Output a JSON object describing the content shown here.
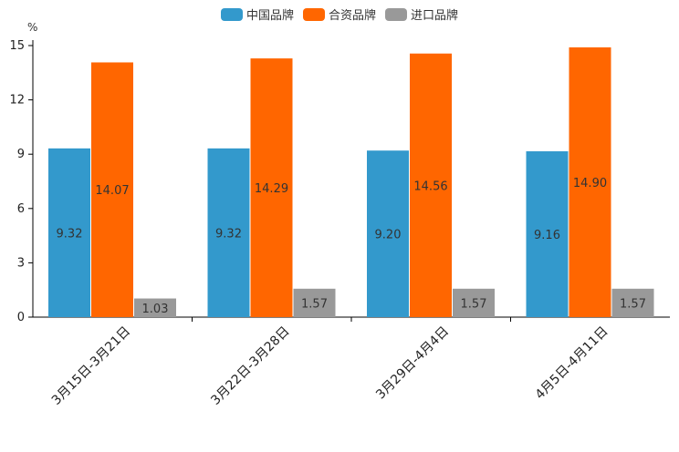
{
  "chart_data": {
    "type": "bar",
    "title": "",
    "xlabel": "",
    "ylabel": "%",
    "ylim": [
      0,
      15
    ],
    "yticks": [
      0,
      3,
      6,
      9,
      12,
      15
    ],
    "categories": [
      "3月15日-3月21日",
      "3月22日-3月28日",
      "3月29日-4月4日",
      "4月5日-4月11日"
    ],
    "series": [
      {
        "name": "中国品牌",
        "color": "#3399cc",
        "values": [
          9.32,
          9.32,
          9.2,
          9.16
        ]
      },
      {
        "name": "合资品牌",
        "color": "#ff6600",
        "values": [
          14.07,
          14.29,
          14.56,
          14.9
        ]
      },
      {
        "name": "进口品牌",
        "color": "#999999",
        "values": [
          1.03,
          1.57,
          1.57,
          1.57
        ]
      }
    ],
    "legend_position": "top-center",
    "grid": false
  }
}
